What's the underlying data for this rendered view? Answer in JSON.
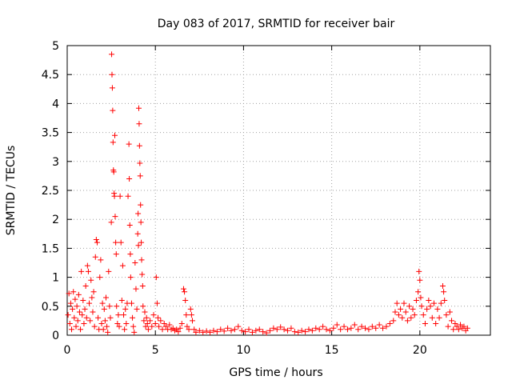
{
  "chart_data": {
    "type": "scatter",
    "title": "Day 083 of 2017, SRMTID for receiver bair",
    "xlabel": "GPS time / hours",
    "ylabel": "SRMTID / TECUs",
    "xlim": [
      0,
      24
    ],
    "ylim": [
      0,
      5
    ],
    "xticks": [
      0,
      5,
      10,
      15,
      20
    ],
    "xtick_labels": [
      "0",
      "5",
      "10",
      "15",
      "20"
    ],
    "yticks": [
      0,
      0.5,
      1,
      1.5,
      2,
      2.5,
      3,
      3.5,
      4,
      4.5,
      5
    ],
    "ytick_labels": [
      "0",
      "0.5",
      "1",
      "1.5",
      "2",
      "2.5",
      "3",
      "3.5",
      "4",
      "4.5",
      "5"
    ],
    "grid": true,
    "marker": "+",
    "series": [
      {
        "name": "SRMTID",
        "color": "#ff0000",
        "points": [
          [
            0.05,
            0.35
          ],
          [
            0.1,
            0.72
          ],
          [
            0.15,
            0.2
          ],
          [
            0.2,
            0.55
          ],
          [
            0.25,
            0.1
          ],
          [
            0.3,
            0.45
          ],
          [
            0.35,
            0.75
          ],
          [
            0.4,
            0.3
          ],
          [
            0.45,
            0.62
          ],
          [
            0.5,
            0.15
          ],
          [
            0.55,
            0.5
          ],
          [
            0.6,
            0.25
          ],
          [
            0.65,
            0.7
          ],
          [
            0.7,
            0.4
          ],
          [
            0.75,
            0.1
          ],
          [
            0.8,
            1.1
          ],
          [
            0.85,
            0.35
          ],
          [
            0.9,
            0.6
          ],
          [
            0.95,
            0.2
          ],
          [
            1.0,
            0.45
          ],
          [
            1.05,
            0.85
          ],
          [
            1.1,
            0.3
          ],
          [
            1.15,
            1.2
          ],
          [
            1.2,
            1.1
          ],
          [
            1.25,
            0.55
          ],
          [
            1.3,
            0.25
          ],
          [
            1.35,
            0.95
          ],
          [
            1.4,
            0.65
          ],
          [
            1.45,
            0.4
          ],
          [
            1.5,
            0.75
          ],
          [
            1.55,
            0.15
          ],
          [
            1.6,
            1.35
          ],
          [
            1.65,
            1.65
          ],
          [
            1.7,
            1.6
          ],
          [
            1.75,
            0.3
          ],
          [
            1.8,
            0.1
          ],
          [
            1.85,
            1.0
          ],
          [
            1.9,
            1.3
          ],
          [
            1.95,
            0.2
          ],
          [
            2.0,
            0.55
          ],
          [
            2.05,
            0.1
          ],
          [
            2.1,
            0.45
          ],
          [
            2.15,
            0.25
          ],
          [
            2.2,
            0.65
          ],
          [
            2.25,
            0.15
          ],
          [
            2.3,
            0.05
          ],
          [
            2.35,
            1.1
          ],
          [
            2.4,
            0.5
          ],
          [
            2.45,
            0.3
          ],
          [
            2.5,
            1.95
          ],
          [
            2.52,
            4.85
          ],
          [
            2.54,
            4.5
          ],
          [
            2.56,
            4.27
          ],
          [
            2.58,
            3.88
          ],
          [
            2.6,
            3.33
          ],
          [
            2.62,
            2.85
          ],
          [
            2.64,
            2.82
          ],
          [
            2.66,
            2.45
          ],
          [
            2.68,
            2.4
          ],
          [
            2.7,
            3.45
          ],
          [
            2.72,
            2.05
          ],
          [
            2.75,
            1.6
          ],
          [
            2.78,
            1.4
          ],
          [
            2.8,
            0.5
          ],
          [
            2.85,
            0.2
          ],
          [
            2.9,
            0.35
          ],
          [
            2.95,
            0.15
          ],
          [
            3.0,
            2.4
          ],
          [
            3.05,
            1.6
          ],
          [
            3.1,
            0.6
          ],
          [
            3.15,
            1.2
          ],
          [
            3.2,
            0.35
          ],
          [
            3.25,
            0.1
          ],
          [
            3.3,
            0.45
          ],
          [
            3.35,
            0.2
          ],
          [
            3.4,
            0.55
          ],
          [
            3.45,
            2.4
          ],
          [
            3.5,
            3.3
          ],
          [
            3.52,
            2.7
          ],
          [
            3.55,
            1.9
          ],
          [
            3.58,
            1.4
          ],
          [
            3.6,
            1.0
          ],
          [
            3.65,
            0.55
          ],
          [
            3.7,
            0.3
          ],
          [
            3.75,
            0.15
          ],
          [
            3.8,
            0.05
          ],
          [
            3.85,
            1.25
          ],
          [
            3.9,
            0.8
          ],
          [
            3.95,
            0.45
          ],
          [
            4.0,
            1.75
          ],
          [
            4.02,
            2.1
          ],
          [
            4.04,
            1.55
          ],
          [
            4.06,
            3.92
          ],
          [
            4.08,
            3.65
          ],
          [
            4.1,
            3.27
          ],
          [
            4.12,
            2.97
          ],
          [
            4.14,
            2.75
          ],
          [
            4.16,
            2.25
          ],
          [
            4.18,
            1.95
          ],
          [
            4.2,
            1.6
          ],
          [
            4.22,
            1.3
          ],
          [
            4.25,
            1.05
          ],
          [
            4.28,
            0.85
          ],
          [
            4.3,
            0.5
          ],
          [
            4.35,
            0.25
          ],
          [
            4.4,
            0.4
          ],
          [
            4.45,
            0.15
          ],
          [
            4.5,
            0.3
          ],
          [
            4.55,
            0.2
          ],
          [
            4.6,
            0.1
          ],
          [
            4.7,
            0.25
          ],
          [
            4.8,
            0.15
          ],
          [
            4.9,
            0.35
          ],
          [
            5.0,
            0.2
          ],
          [
            5.05,
            1.0
          ],
          [
            5.1,
            0.55
          ],
          [
            5.15,
            0.3
          ],
          [
            5.2,
            0.15
          ],
          [
            5.3,
            0.25
          ],
          [
            5.4,
            0.1
          ],
          [
            5.5,
            0.2
          ],
          [
            5.6,
            0.15
          ],
          [
            5.7,
            0.1
          ],
          [
            5.8,
            0.18
          ],
          [
            5.9,
            0.1
          ],
          [
            6.0,
            0.12
          ],
          [
            6.1,
            0.08
          ],
          [
            6.2,
            0.1
          ],
          [
            6.3,
            0.06
          ],
          [
            6.4,
            0.12
          ],
          [
            6.5,
            0.2
          ],
          [
            6.6,
            0.8
          ],
          [
            6.65,
            0.75
          ],
          [
            6.7,
            0.6
          ],
          [
            6.75,
            0.35
          ],
          [
            6.8,
            0.15
          ],
          [
            6.9,
            0.1
          ],
          [
            7.0,
            0.45
          ],
          [
            7.05,
            0.35
          ],
          [
            7.1,
            0.25
          ],
          [
            7.2,
            0.1
          ],
          [
            7.3,
            0.05
          ],
          [
            7.5,
            0.08
          ],
          [
            7.7,
            0.05
          ],
          [
            7.9,
            0.07
          ],
          [
            8.1,
            0.05
          ],
          [
            8.3,
            0.08
          ],
          [
            8.5,
            0.06
          ],
          [
            8.7,
            0.1
          ],
          [
            8.9,
            0.07
          ],
          [
            9.1,
            0.12
          ],
          [
            9.3,
            0.08
          ],
          [
            9.5,
            0.1
          ],
          [
            9.7,
            0.15
          ],
          [
            9.9,
            0.08
          ],
          [
            10.1,
            0.06
          ],
          [
            10.3,
            0.1
          ],
          [
            10.5,
            0.05
          ],
          [
            10.7,
            0.08
          ],
          [
            10.9,
            0.1
          ],
          [
            11.1,
            0.06
          ],
          [
            11.3,
            0.04
          ],
          [
            11.5,
            0.08
          ],
          [
            11.7,
            0.12
          ],
          [
            11.9,
            0.1
          ],
          [
            12.1,
            0.14
          ],
          [
            12.3,
            0.1
          ],
          [
            12.5,
            0.08
          ],
          [
            12.7,
            0.12
          ],
          [
            12.9,
            0.06
          ],
          [
            13.1,
            0.05
          ],
          [
            13.3,
            0.08
          ],
          [
            13.5,
            0.06
          ],
          [
            13.7,
            0.1
          ],
          [
            13.9,
            0.08
          ],
          [
            14.1,
            0.12
          ],
          [
            14.3,
            0.1
          ],
          [
            14.5,
            0.15
          ],
          [
            14.7,
            0.1
          ],
          [
            14.9,
            0.08
          ],
          [
            15.1,
            0.12
          ],
          [
            15.3,
            0.18
          ],
          [
            15.5,
            0.1
          ],
          [
            15.7,
            0.15
          ],
          [
            15.9,
            0.1
          ],
          [
            16.1,
            0.12
          ],
          [
            16.3,
            0.18
          ],
          [
            16.5,
            0.1
          ],
          [
            16.7,
            0.15
          ],
          [
            16.9,
            0.12
          ],
          [
            17.1,
            0.1
          ],
          [
            17.3,
            0.15
          ],
          [
            17.5,
            0.12
          ],
          [
            17.7,
            0.18
          ],
          [
            17.9,
            0.12
          ],
          [
            18.1,
            0.15
          ],
          [
            18.3,
            0.2
          ],
          [
            18.5,
            0.25
          ],
          [
            18.6,
            0.4
          ],
          [
            18.7,
            0.55
          ],
          [
            18.8,
            0.35
          ],
          [
            18.9,
            0.45
          ],
          [
            19.0,
            0.3
          ],
          [
            19.1,
            0.55
          ],
          [
            19.2,
            0.4
          ],
          [
            19.3,
            0.25
          ],
          [
            19.4,
            0.5
          ],
          [
            19.5,
            0.3
          ],
          [
            19.6,
            0.45
          ],
          [
            19.7,
            0.35
          ],
          [
            19.8,
            0.6
          ],
          [
            19.9,
            0.75
          ],
          [
            19.95,
            1.1
          ],
          [
            20.0,
            0.95
          ],
          [
            20.05,
            0.65
          ],
          [
            20.1,
            0.5
          ],
          [
            20.2,
            0.35
          ],
          [
            20.3,
            0.2
          ],
          [
            20.4,
            0.45
          ],
          [
            20.5,
            0.6
          ],
          [
            20.6,
            0.5
          ],
          [
            20.7,
            0.3
          ],
          [
            20.8,
            0.55
          ],
          [
            20.9,
            0.2
          ],
          [
            21.0,
            0.45
          ],
          [
            21.1,
            0.3
          ],
          [
            21.2,
            0.55
          ],
          [
            21.3,
            0.85
          ],
          [
            21.35,
            0.75
          ],
          [
            21.4,
            0.6
          ],
          [
            21.5,
            0.35
          ],
          [
            21.6,
            0.15
          ],
          [
            21.7,
            0.4
          ],
          [
            21.8,
            0.25
          ],
          [
            21.9,
            0.1
          ],
          [
            22.0,
            0.2
          ],
          [
            22.1,
            0.15
          ],
          [
            22.2,
            0.1
          ],
          [
            22.3,
            0.18
          ],
          [
            22.4,
            0.12
          ],
          [
            22.5,
            0.15
          ],
          [
            22.6,
            0.08
          ],
          [
            22.7,
            0.12
          ]
        ]
      }
    ]
  }
}
